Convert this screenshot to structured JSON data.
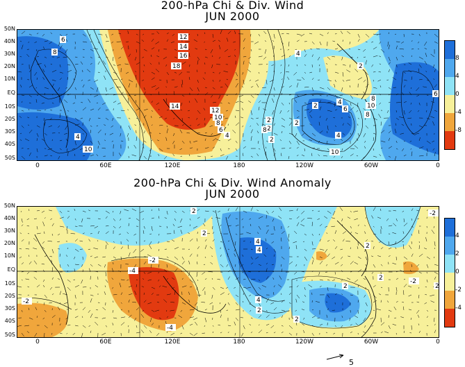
{
  "panels": [
    {
      "title_line1": "200-hPa Chi & Div. Wind",
      "title_line2": "JUN 2000",
      "lat_labels": [
        "50N",
        "40N",
        "30N",
        "20N",
        "10N",
        "EQ",
        "10S",
        "20S",
        "30S",
        "40S",
        "50S"
      ],
      "lon_labels": [
        "0",
        "60E",
        "120E",
        "180",
        "120W",
        "60W",
        "0"
      ],
      "contour_labels": [
        "6",
        "8",
        "12",
        "14",
        "16",
        "18",
        "14",
        "12",
        "10",
        "8",
        "6",
        "4",
        "2",
        "4",
        "2",
        "2",
        "2",
        "4",
        "6",
        "8",
        "10",
        "8",
        "6",
        "4",
        "10",
        "4",
        "10",
        "2",
        "8",
        "2"
      ],
      "colorbar": {
        "labels": [
          "8",
          "4",
          "0",
          "-4",
          "-8"
        ],
        "colors": [
          "#1e6fd9",
          "#4fa8ee",
          "#8fe3f6",
          "#f7f09a",
          "#f0a63c",
          "#e23a10"
        ]
      }
    },
    {
      "title_line1": "200-hPa Chi & Div. Wind Anomaly",
      "title_line2": "JUN 2000",
      "lat_labels": [
        "50N",
        "40N",
        "30N",
        "20N",
        "10N",
        "EQ",
        "10S",
        "20S",
        "30S",
        "40S",
        "50S"
      ],
      "lon_labels": [
        "0",
        "60E",
        "120E",
        "180",
        "120W",
        "60W",
        "0"
      ],
      "contour_labels": [
        "2",
        "2",
        "4",
        "-4",
        "-2",
        "-4",
        "-2",
        "-2",
        "2",
        "4",
        "4",
        "2",
        "2",
        "-2",
        "2",
        "2",
        "2"
      ],
      "colorbar": {
        "labels": [
          "4",
          "2",
          "0",
          "-2",
          "-4"
        ],
        "colors": [
          "#1e6fd9",
          "#4fa8ee",
          "#8fe3f6",
          "#f7f09a",
          "#f0a63c",
          "#e23a10"
        ]
      }
    }
  ],
  "reference_vector": {
    "label": "5"
  }
}
